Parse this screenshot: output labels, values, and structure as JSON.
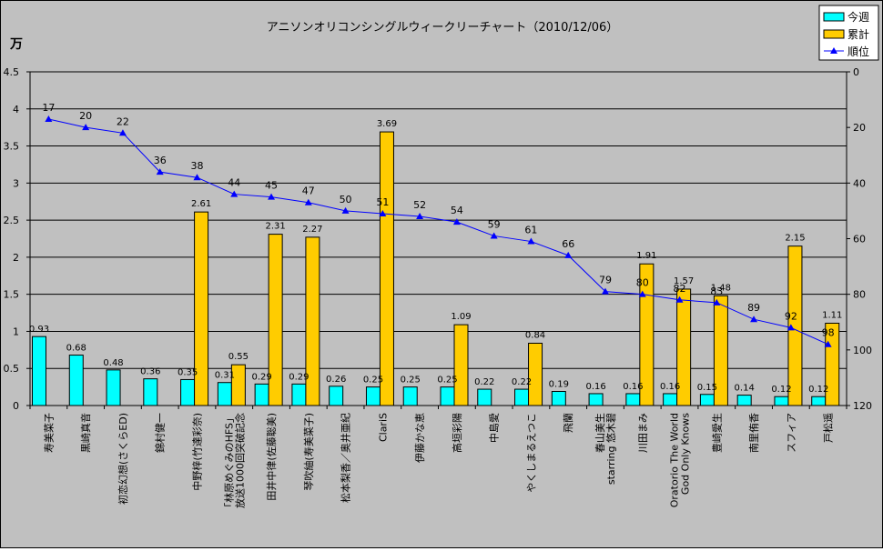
{
  "chart_data": {
    "type": "bar",
    "title": "アニソンオリコンシングルウィークリーチャート（2010/12/06）",
    "y_unit_label": "万",
    "ylim": [
      0,
      4.5
    ],
    "y_ticks": [
      "0",
      "0.5",
      "1",
      "1.5",
      "2",
      "2.5",
      "3",
      "3.5",
      "4",
      "4.5"
    ],
    "y2lim": [
      0,
      120
    ],
    "y2_ticks": [
      "0",
      "20",
      "40",
      "60",
      "80",
      "100",
      "120"
    ],
    "y2_reversed": true,
    "legend_position": "top-right",
    "categories": [
      "寿美菜子",
      "黒崎真音",
      "初恋幻想(さくらED)",
      "錦村健一",
      "中野梓(竹達彩奈)",
      "「林原めぐみのHFS」 放送1000回突破記念",
      "田井中律(佐藤聡美)",
      "琴吹紬(寿美菜子)",
      "松本梨香／奥井亜紀",
      "ClariS",
      "伊藤かな恵",
      "高垣彩陽",
      "中島愛",
      "やくしまるえつこ",
      "飛蘭",
      "春山美生 starring 悠木碧",
      "川田まみ",
      "Oratorio The World God Only Knows",
      "豊崎愛生",
      "南里侑香",
      "スフィア",
      "戸松遥"
    ],
    "series": [
      {
        "name": "今週",
        "color": "#00ffff",
        "values": [
          0.93,
          0.68,
          0.48,
          0.36,
          0.35,
          0.31,
          0.29,
          0.29,
          0.26,
          0.25,
          0.25,
          0.25,
          0.22,
          0.22,
          0.19,
          0.16,
          0.16,
          0.16,
          0.15,
          0.14,
          0.12,
          0.12
        ],
        "labels": [
          "0.93",
          "0.68",
          "0.48",
          "0.36",
          "0.35",
          "0.31",
          "0.29",
          "0.29",
          "0.26",
          "0.25",
          "0.25",
          "0.25",
          "0.22",
          "0.22",
          "0.19",
          "0.16",
          "0.16",
          "0.16",
          "0.15",
          "0.14",
          "0.12",
          "0.12"
        ]
      },
      {
        "name": "累計",
        "color": "#ffcc00",
        "values": [
          null,
          null,
          null,
          null,
          2.61,
          0.55,
          2.31,
          2.27,
          null,
          3.69,
          null,
          1.09,
          null,
          0.84,
          null,
          null,
          1.91,
          1.57,
          1.48,
          null,
          2.15,
          1.11
        ],
        "labels": [
          "",
          "",
          "",
          "",
          "2.61",
          "0.55",
          "2.31",
          "2.27",
          "",
          "3.69",
          "",
          "1.09",
          "",
          "0.84",
          "",
          "",
          "1.91",
          "1.57",
          "1.48",
          "",
          "2.15",
          "1.11"
        ]
      },
      {
        "name": "順位",
        "color": "#0000ff",
        "axis": "right",
        "values": [
          17,
          20,
          22,
          36,
          38,
          44,
          45,
          47,
          50,
          51,
          52,
          54,
          59,
          61,
          66,
          79,
          80,
          82,
          83,
          89,
          92,
          98
        ],
        "labels": [
          "17",
          "20",
          "22",
          "36",
          "38",
          "44",
          "45",
          "47",
          "50",
          "51",
          "52",
          "54",
          "59",
          "61",
          "66",
          "79",
          "80",
          "82",
          "83",
          "89",
          "92",
          "98"
        ]
      }
    ]
  }
}
